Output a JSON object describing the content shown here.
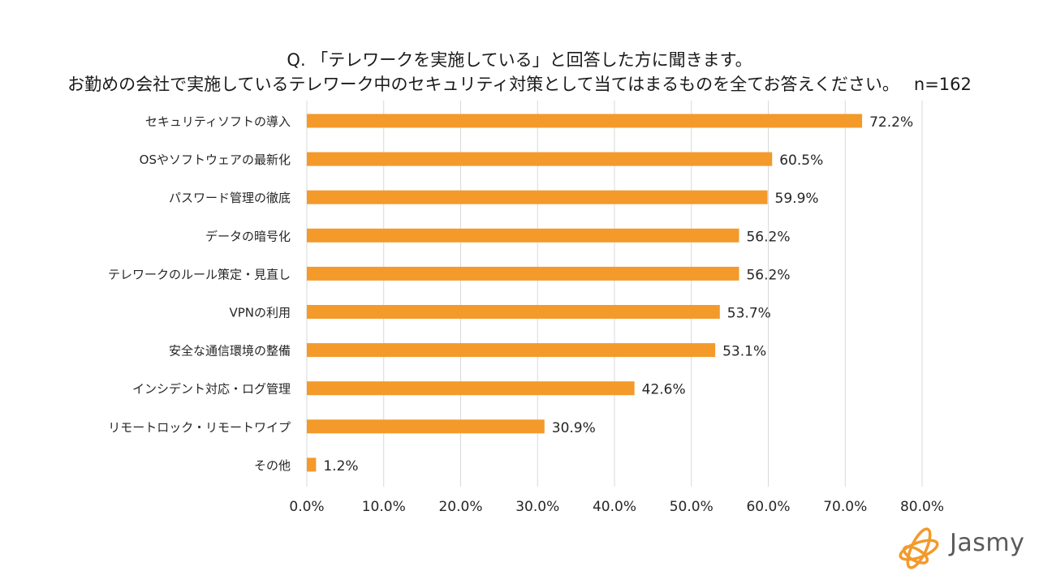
{
  "title": {
    "line1": "Q. 「テレワークを実施している」と回答した方に聞きます。",
    "line2": "お勤めの会社で実施しているテレワーク中のセキュリティ対策として当てはまるものを全てお答えください。",
    "n": "n=162"
  },
  "logo": {
    "text": "Jasmy"
  },
  "colors": {
    "bar": "#F39A2B",
    "grid": "#D9D9D9",
    "text": "#262626",
    "logo_orange": "#F39A2B"
  },
  "chart_data": {
    "type": "bar",
    "orientation": "horizontal",
    "categories": [
      "セキュリティソフトの導入",
      "OSやソフトウェアの最新化",
      "パスワード管理の徹底",
      "データの暗号化",
      "テレワークのルール策定・見直し",
      "VPNの利用",
      "安全な通信環境の整備",
      "インシデント対応・ログ管理",
      "リモートロック・リモートワイプ",
      "その他"
    ],
    "values": [
      72.2,
      60.5,
      59.9,
      56.2,
      56.2,
      53.7,
      53.1,
      42.6,
      30.9,
      1.2
    ],
    "value_labels": [
      "72.2%",
      "60.5%",
      "59.9%",
      "56.2%",
      "56.2%",
      "53.7%",
      "53.1%",
      "42.6%",
      "30.9%",
      "1.2%"
    ],
    "xlim": [
      0,
      80
    ],
    "xticks": [
      0,
      10,
      20,
      30,
      40,
      50,
      60,
      70,
      80
    ],
    "xtick_labels": [
      "0.0%",
      "10.0%",
      "20.0%",
      "30.0%",
      "40.0%",
      "50.0%",
      "60.0%",
      "70.0%",
      "80.0%"
    ],
    "grid": "vertical",
    "legend": "none"
  }
}
